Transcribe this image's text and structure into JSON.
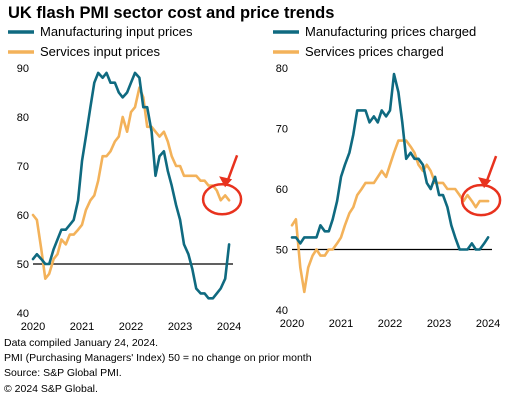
{
  "title": "UK flash PMI sector cost and price trends",
  "colors": {
    "manufacturing": "#0f6a80",
    "services": "#f3b25a",
    "highlight": "#e8321e",
    "baseline": "#000000"
  },
  "notes": [
    "Data compiled January 24, 2024.",
    "PMI (Purchasing Managers' Index) 50 = no change on prior month",
    "Source: S&P Global PMI.",
    "© 2024 S&P Global."
  ],
  "chart_data": [
    {
      "type": "line",
      "title": "",
      "ylim": [
        40,
        90
      ],
      "yticks": [
        40,
        50,
        60,
        70,
        80,
        90
      ],
      "xlim": [
        2020.0,
        2024.08
      ],
      "xticks": [
        "2020",
        "2021",
        "2022",
        "2023",
        "2024"
      ],
      "reference_line": 50,
      "legend_position": "top",
      "annotation": "red circle with arrow highlighting latest services input prices",
      "series": [
        {
          "name": "Manufacturing input prices",
          "color": "#0f6a80",
          "x": [
            2020.0,
            2020.08,
            2020.17,
            2020.25,
            2020.33,
            2020.42,
            2020.5,
            2020.58,
            2020.67,
            2020.75,
            2020.83,
            2020.92,
            2021.0,
            2021.08,
            2021.17,
            2021.25,
            2021.33,
            2021.42,
            2021.5,
            2021.58,
            2021.67,
            2021.75,
            2021.83,
            2021.92,
            2022.0,
            2022.08,
            2022.17,
            2022.25,
            2022.33,
            2022.42,
            2022.5,
            2022.58,
            2022.67,
            2022.75,
            2022.83,
            2022.92,
            2023.0,
            2023.08,
            2023.17,
            2023.25,
            2023.33,
            2023.42,
            2023.5,
            2023.58,
            2023.67,
            2023.75,
            2023.83,
            2023.92,
            2024.0
          ],
          "y": [
            51,
            52,
            51,
            50,
            50,
            53,
            55,
            57,
            57,
            58,
            59,
            63,
            71,
            76,
            82,
            87,
            89,
            88,
            89,
            87,
            87,
            85,
            84,
            85,
            87,
            89,
            88,
            82,
            82,
            77,
            68,
            72,
            73,
            69,
            66,
            62,
            59,
            54,
            52,
            49,
            45,
            44,
            44,
            43,
            43,
            44,
            45,
            47,
            54
          ]
        },
        {
          "name": "Services input prices",
          "color": "#f3b25a",
          "x": [
            2020.0,
            2020.08,
            2020.17,
            2020.25,
            2020.33,
            2020.42,
            2020.5,
            2020.58,
            2020.67,
            2020.75,
            2020.83,
            2020.92,
            2021.0,
            2021.08,
            2021.17,
            2021.25,
            2021.33,
            2021.42,
            2021.5,
            2021.58,
            2021.67,
            2021.75,
            2021.83,
            2021.92,
            2022.0,
            2022.08,
            2022.17,
            2022.25,
            2022.33,
            2022.42,
            2022.5,
            2022.58,
            2022.67,
            2022.75,
            2022.83,
            2022.92,
            2023.0,
            2023.08,
            2023.17,
            2023.25,
            2023.33,
            2023.42,
            2023.5,
            2023.58,
            2023.67,
            2023.75,
            2023.83,
            2023.92,
            2024.0
          ],
          "y": [
            60,
            59,
            53,
            47,
            48,
            51,
            52,
            55,
            54,
            56,
            56,
            57,
            58,
            61,
            63,
            64,
            67,
            72,
            72,
            73,
            75,
            76,
            80,
            77,
            81,
            82,
            86,
            84,
            78,
            78,
            77,
            76,
            77,
            75,
            72,
            70,
            70,
            68,
            68,
            68,
            68,
            67,
            67,
            66,
            66,
            65,
            63,
            64,
            63
          ]
        }
      ]
    },
    {
      "type": "line",
      "title": "",
      "ylim": [
        40,
        80
      ],
      "yticks": [
        40,
        50,
        60,
        70,
        80
      ],
      "xlim": [
        2020.0,
        2024.08
      ],
      "xticks": [
        "2020",
        "2021",
        "2022",
        "2023",
        "2024"
      ],
      "reference_line": 50,
      "legend_position": "top",
      "annotation": "red circle with arrow highlighting latest services prices charged",
      "series": [
        {
          "name": "Manufacturing prices charged",
          "color": "#0f6a80",
          "x": [
            2020.0,
            2020.08,
            2020.17,
            2020.25,
            2020.33,
            2020.42,
            2020.5,
            2020.58,
            2020.67,
            2020.75,
            2020.83,
            2020.92,
            2021.0,
            2021.08,
            2021.17,
            2021.25,
            2021.33,
            2021.42,
            2021.5,
            2021.58,
            2021.67,
            2021.75,
            2021.83,
            2021.92,
            2022.0,
            2022.08,
            2022.17,
            2022.25,
            2022.33,
            2022.42,
            2022.5,
            2022.58,
            2022.67,
            2022.75,
            2022.83,
            2022.92,
            2023.0,
            2023.08,
            2023.17,
            2023.25,
            2023.33,
            2023.42,
            2023.5,
            2023.58,
            2023.67,
            2023.75,
            2023.83,
            2023.92,
            2024.0
          ],
          "y": [
            52,
            52,
            51,
            52,
            52,
            52,
            52,
            54,
            53,
            53,
            55,
            58,
            62,
            64,
            66,
            69,
            73,
            73,
            73,
            71,
            72,
            71,
            73,
            72,
            73,
            79,
            76,
            71,
            65,
            66,
            65,
            65,
            64,
            61,
            60,
            62,
            59,
            59,
            57,
            54,
            52,
            50,
            50,
            50,
            51,
            50,
            50,
            51,
            52
          ]
        },
        {
          "name": "Services prices charged",
          "color": "#f3b25a",
          "x": [
            2020.0,
            2020.08,
            2020.17,
            2020.25,
            2020.33,
            2020.42,
            2020.5,
            2020.58,
            2020.67,
            2020.75,
            2020.83,
            2020.92,
            2021.0,
            2021.08,
            2021.17,
            2021.25,
            2021.33,
            2021.42,
            2021.5,
            2021.58,
            2021.67,
            2021.75,
            2021.83,
            2021.92,
            2022.0,
            2022.08,
            2022.17,
            2022.25,
            2022.33,
            2022.42,
            2022.5,
            2022.58,
            2022.67,
            2022.75,
            2022.83,
            2022.92,
            2023.0,
            2023.08,
            2023.17,
            2023.25,
            2023.33,
            2023.42,
            2023.5,
            2023.58,
            2023.67,
            2023.75,
            2023.83,
            2023.92,
            2024.0
          ],
          "y": [
            54,
            55,
            47,
            43,
            47,
            49,
            50,
            49,
            49,
            50,
            50,
            51,
            52,
            54,
            56,
            57,
            59,
            60,
            61,
            61,
            61,
            62,
            63,
            62,
            64,
            66,
            68,
            68,
            68,
            67,
            66,
            64,
            63,
            64,
            63,
            61,
            61,
            61,
            60,
            60,
            60,
            59,
            58,
            59,
            58,
            57,
            58,
            58,
            58
          ]
        }
      ]
    }
  ]
}
